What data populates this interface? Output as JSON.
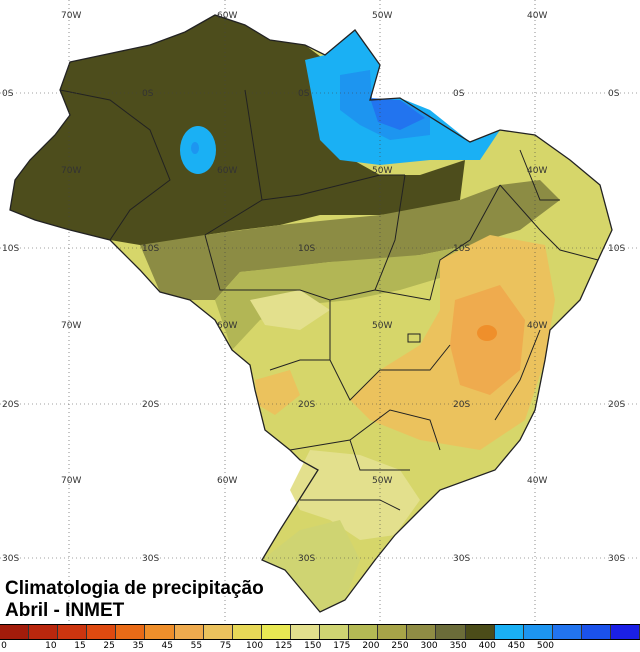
{
  "caption": {
    "line1": "Climatologia de precipitação",
    "line2": "Abril - INMET"
  },
  "grid_labels": {
    "lon": [
      "70W",
      "60W",
      "50W",
      "40W"
    ],
    "lat": [
      "0S",
      "10S",
      "20S",
      "30S"
    ]
  },
  "legend": {
    "colors": [
      "#a21c0b",
      "#b9270d",
      "#cc350f",
      "#de4a10",
      "#e96b17",
      "#ef8f2b",
      "#efab4e",
      "#ebc25d",
      "#e7d857",
      "#e8e853",
      "#e3e08d",
      "#cfd472",
      "#b4b954",
      "#a7a448",
      "#8f8c44",
      "#6b6c39",
      "#4b4c19",
      "#1ab0f4",
      "#1d95f0",
      "#2274ef",
      "#1b52ea",
      "#1b20e6"
    ],
    "ticks": [
      "0",
      "10",
      "15",
      "25",
      "35",
      "45",
      "55",
      "75",
      "100",
      "125",
      "150",
      "175",
      "200",
      "250",
      "300",
      "350",
      "400",
      "450",
      "500"
    ]
  }
}
